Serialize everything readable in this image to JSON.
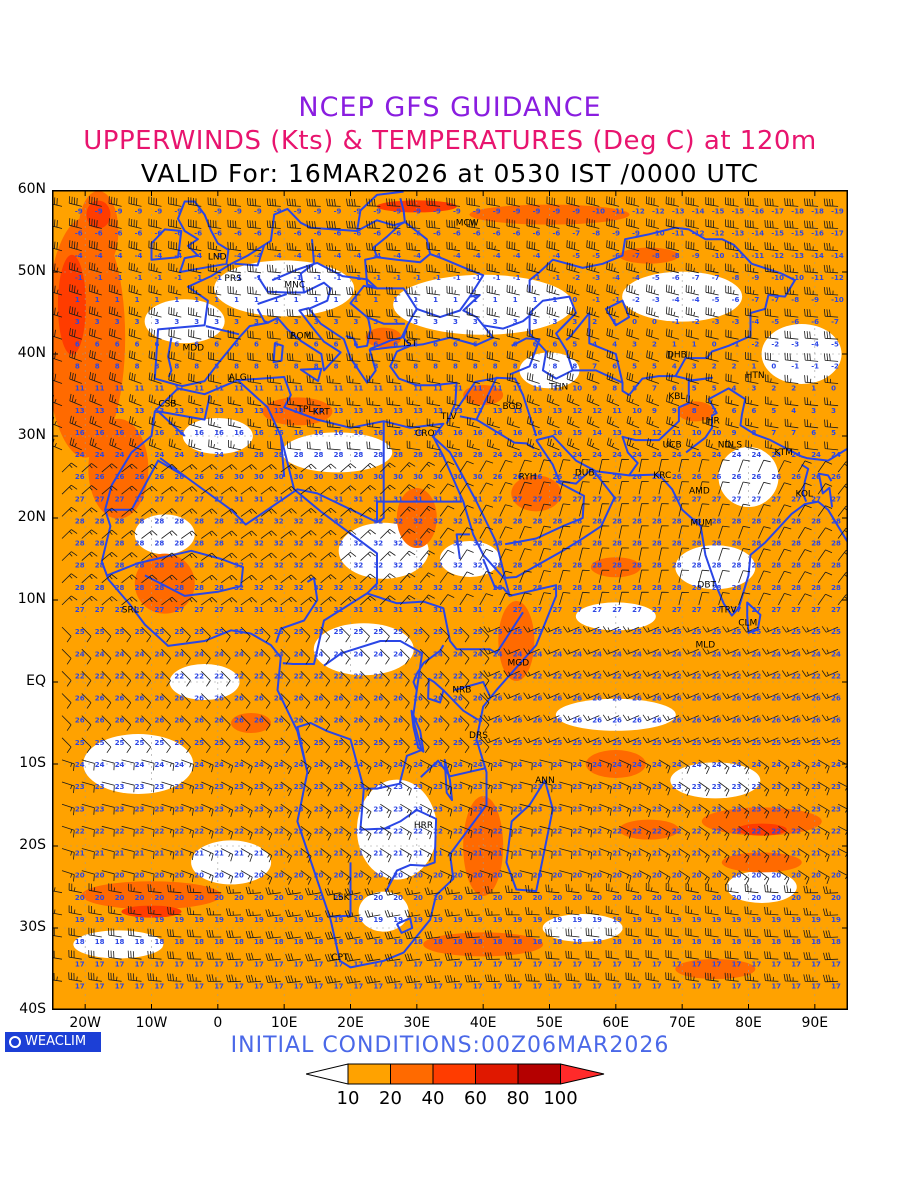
{
  "title": {
    "line1": "NCEP GFS GUIDANCE",
    "line2": "UPPERWINDS (Kts) & TEMPERATURES (Deg C) at 120m",
    "line3": "VALID For: 16MAR2026 at 0530 IST /0000 UTC"
  },
  "axes": {
    "lat_labels": [
      "60N",
      "50N",
      "40N",
      "30N",
      "20N",
      "10N",
      "EQ",
      "10S",
      "20S",
      "30S",
      "40S"
    ],
    "lon_labels": [
      "20W",
      "10W",
      "0",
      "10E",
      "20E",
      "30E",
      "40E",
      "50E",
      "60E",
      "70E",
      "80E",
      "90E"
    ]
  },
  "stations": [
    {
      "code": "MCW",
      "lon": 37.6,
      "lat": 55.7
    },
    {
      "code": "LND",
      "lon": -0.1,
      "lat": 51.5
    },
    {
      "code": "PRS",
      "lon": 2.3,
      "lat": 48.9
    },
    {
      "code": "MNC",
      "lon": 11.6,
      "lat": 48.1
    },
    {
      "code": "ROM",
      "lon": 12.5,
      "lat": 41.9
    },
    {
      "code": "MDD",
      "lon": -3.7,
      "lat": 40.4
    },
    {
      "code": "IST",
      "lon": 29.0,
      "lat": 41.0
    },
    {
      "code": "ALG",
      "lon": 3.0,
      "lat": 36.8
    },
    {
      "code": "CSB",
      "lon": -7.6,
      "lat": 33.6
    },
    {
      "code": "TPL",
      "lon": 13.2,
      "lat": 32.9
    },
    {
      "code": "KRT",
      "lon": 15.6,
      "lat": 32.6
    },
    {
      "code": "TLV",
      "lon": 34.8,
      "lat": 32.1
    },
    {
      "code": "CRO",
      "lon": 31.2,
      "lat": 30.0
    },
    {
      "code": "BGD",
      "lon": 44.4,
      "lat": 33.3
    },
    {
      "code": "THN",
      "lon": 51.4,
      "lat": 35.7
    },
    {
      "code": "RYH",
      "lon": 46.7,
      "lat": 24.7
    },
    {
      "code": "DUB",
      "lon": 55.3,
      "lat": 25.2
    },
    {
      "code": "DHB",
      "lon": 69.2,
      "lat": 39.6
    },
    {
      "code": "KBL",
      "lon": 69.2,
      "lat": 34.5
    },
    {
      "code": "HTN",
      "lon": 81.0,
      "lat": 37.1
    },
    {
      "code": "LHR",
      "lon": 74.3,
      "lat": 31.5
    },
    {
      "code": "UCB",
      "lon": 68.5,
      "lat": 28.6
    },
    {
      "code": "NDLS",
      "lon": 77.2,
      "lat": 28.6
    },
    {
      "code": "KTM",
      "lon": 85.3,
      "lat": 27.7
    },
    {
      "code": "KRC",
      "lon": 67.0,
      "lat": 24.9
    },
    {
      "code": "AMD",
      "lon": 72.6,
      "lat": 23.0
    },
    {
      "code": "KOL",
      "lon": 88.4,
      "lat": 22.6
    },
    {
      "code": "MUM",
      "lon": 72.9,
      "lat": 19.1
    },
    {
      "code": "DBT",
      "lon": 73.7,
      "lat": 11.5
    },
    {
      "code": "TRV",
      "lon": 76.9,
      "lat": 8.5
    },
    {
      "code": "CLM",
      "lon": 79.9,
      "lat": 6.9
    },
    {
      "code": "MLD",
      "lon": 73.5,
      "lat": 4.2
    },
    {
      "code": "SRL",
      "lon": -13.2,
      "lat": 8.5
    },
    {
      "code": "MGD",
      "lon": 45.3,
      "lat": 2.0
    },
    {
      "code": "NRB",
      "lon": 36.8,
      "lat": -1.3
    },
    {
      "code": "DRS",
      "lon": 39.3,
      "lat": -6.8
    },
    {
      "code": "ANN",
      "lon": 49.3,
      "lat": -12.3
    },
    {
      "code": "HRR",
      "lon": 31.0,
      "lat": -17.8
    },
    {
      "code": "LSK",
      "lon": 18.6,
      "lat": -26.6
    },
    {
      "code": "CPT",
      "lon": 18.4,
      "lat": -33.9
    }
  ],
  "footer": {
    "logo": "WEACLIM",
    "initial_conditions": "INITIAL CONDITIONS:00Z06MAR2026"
  },
  "colorbar": {
    "labels": [
      "10",
      "20",
      "40",
      "60",
      "80",
      "100"
    ],
    "colors": [
      "#ffffff",
      "#ffa200",
      "#ff6a00",
      "#ff3c00",
      "#e01800",
      "#b40000",
      "#ff2a2a"
    ]
  },
  "colors": {
    "coast": "#2a46e6",
    "temp_text": "#2a46e6",
    "barb": "#1a1a1a",
    "band_10_20": "#ffa200",
    "band_20_40": "#ff6a00",
    "band_40_60": "#ff3c00"
  }
}
